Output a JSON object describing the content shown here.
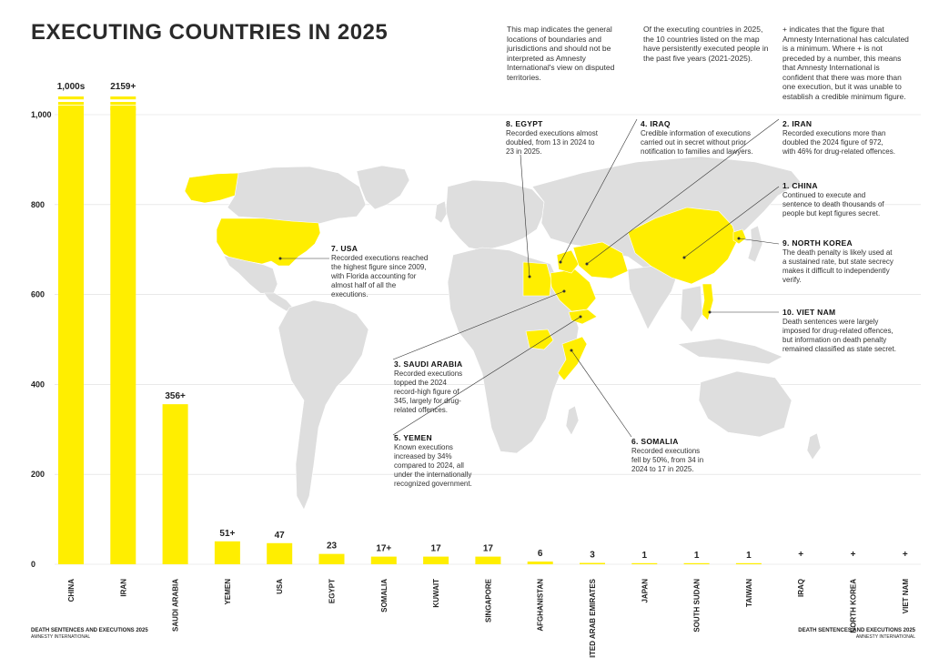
{
  "page": {
    "title": "EXECUTING COUNTRIES IN 2025",
    "intro": [
      "This map indicates the general locations of boundaries and jurisdictions and should not be interpreted as Amnesty International's view on disputed territories.",
      "Of the executing countries in 2025, the 10 countries listed on the map have persistently executed people in the past five years (2021-2025).",
      "+ indicates that the figure that Amnesty International has calculated is a minimum. Where + is not preceded by a number, this means that Amnesty International is confident that there was more than one execution, but it was unable to establish a credible minimum figure."
    ],
    "footer_left": {
      "title": "DEATH SENTENCES AND EXECUTIONS 2025",
      "org": "AMNESTY INTERNATIONAL"
    },
    "footer_right": {
      "title": "DEATH SENTENCES AND EXECUTIONS 2025",
      "org": "AMNESTY INTERNATIONAL"
    }
  },
  "colors": {
    "bar": "#ffee00",
    "grid": "#dcdcdc",
    "land": "#dedede",
    "highlight": "#ffee00",
    "text": "#222222"
  },
  "chart_data": {
    "type": "bar",
    "title": "EXECUTING COUNTRIES IN 2025",
    "categories": [
      "CHINA",
      "IRAN",
      "SAUDI ARABIA",
      "YEMEN",
      "USA",
      "EGYPT",
      "SOMALIA",
      "KUWAIT",
      "SINGAPORE",
      "AFGHANISTAN",
      "UNITED ARAB EMIRATES",
      "JAPAN",
      "SOUTH SUDAN",
      "TAIWAN",
      "IRAQ",
      "NORTH KOREA",
      "VIET NAM"
    ],
    "values": [
      1000,
      2159,
      356,
      51,
      47,
      23,
      17,
      17,
      17,
      6,
      3,
      1,
      1,
      1,
      null,
      null,
      null
    ],
    "value_labels": [
      "1,000s",
      "2159+",
      "356+",
      "51+",
      "47",
      "23",
      "17+",
      "17",
      "17",
      "6",
      "3",
      "1",
      "1",
      "1",
      "+",
      "+",
      "+"
    ],
    "broken_axis_bars": [
      "CHINA",
      "IRAN"
    ],
    "ylim": [
      0,
      1000
    ],
    "yticks": [
      "0",
      "200",
      "400",
      "600",
      "800",
      "1,000"
    ],
    "grid": true
  },
  "map": {
    "highlighted_countries": [
      "USA",
      "EGYPT",
      "IRAN",
      "IRAQ",
      "SAUDI ARABIA",
      "YEMEN",
      "SOMALIA",
      "CHINA",
      "NORTH KOREA",
      "VIET NAM"
    ],
    "notes": [
      {
        "id": "usa",
        "title": "7. USA",
        "text": "Recorded executions reached the highest figure since 2009, with Florida accounting for almost half of all the executions."
      },
      {
        "id": "egypt",
        "title": "8. EGYPT",
        "text": "Recorded executions almost doubled, from 13 in 2024 to 23 in 2025."
      },
      {
        "id": "iraq",
        "title": "4. IRAQ",
        "text": "Credible information of executions carried out in secret without prior notification to families and lawyers."
      },
      {
        "id": "iran",
        "title": "2. IRAN",
        "text": "Recorded executions more than doubled the 2024 figure of 972, with 46% for drug-related offences."
      },
      {
        "id": "china",
        "title": "1. CHINA",
        "text": "Continued to execute and sentence to death thousands of people but kept figures secret."
      },
      {
        "id": "nkorea",
        "title": "9. NORTH KOREA",
        "text": "The death penalty is likely used at a sustained rate, but state secrecy makes it difficult to independently verify."
      },
      {
        "id": "vietnam",
        "title": "10. VIET NAM",
        "text": "Death sentences were largely imposed for drug-related offences, but information on death penalty remained classified as state secret."
      },
      {
        "id": "saudi",
        "title": "3. SAUDI ARABIA",
        "text": "Recorded executions topped the 2024 record-high figure of 345, largely for drug-related offences."
      },
      {
        "id": "yemen",
        "title": "5. YEMEN",
        "text": "Known executions increased by 34% compared to 2024, all under the internationally recognized government."
      },
      {
        "id": "somalia",
        "title": "6. SOMALIA",
        "text": "Recorded executions fell by 50%, from 34 in 2024 to 17 in 2025."
      }
    ]
  }
}
